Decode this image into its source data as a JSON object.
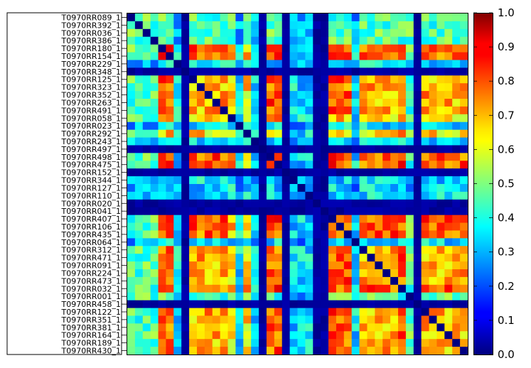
{
  "chart_data": {
    "type": "heatmap",
    "title": "",
    "xlabel": "",
    "ylabel": "",
    "row_labels": [
      "T0970RR089_1",
      "T0970RR392_1",
      "T0970RR036_1",
      "T0970RR386_1",
      "T0970RR180_1",
      "T0970RR154_1",
      "T0970RR229_1",
      "T0970RR348_1",
      "T0970RR125_1",
      "T0970RR323_1",
      "T0970RR352_1",
      "T0970RR263_1",
      "T0970RR491_1",
      "T0970RR058_1",
      "T0970RR023_1",
      "T0970RR292_1",
      "T0970RR243_1",
      "T0970RR497_1",
      "T0970RR498_1",
      "T0970RR475_1",
      "T0970RR152_1",
      "T0970RR344_1",
      "T0970RR127_1",
      "T0970RR110_1",
      "T0970RR020_1",
      "T0970RR041_1",
      "T0970RR407_1",
      "T0970RR106_1",
      "T0970RR435_1",
      "T0970RR064_1",
      "T0970RR312_1",
      "T0970RR471_1",
      "T0970RR091_1",
      "T0970RR224_1",
      "T0970RR473_1",
      "T0970RR032_1",
      "T0970RR001_1",
      "T0970RR458_1",
      "T0970RR122_1",
      "T0970RR351_1",
      "T0970RR381_1",
      "T0970RR164_1",
      "T0970RR189_1",
      "T0970RR430_1"
    ],
    "row_group": [
      4,
      4,
      4,
      4,
      1,
      1,
      3,
      5,
      0,
      0,
      0,
      0,
      0,
      2,
      3,
      2,
      3,
      5,
      1,
      1,
      5,
      3,
      3,
      3,
      5,
      5,
      1,
      1,
      1,
      3,
      0,
      0,
      0,
      0,
      0,
      1,
      4,
      5,
      0,
      0,
      0,
      0,
      0,
      0
    ],
    "group_similarity": [
      [
        0.7,
        0.78,
        0.65,
        0.35,
        0.45,
        0.03
      ],
      [
        0.78,
        0.8,
        0.7,
        0.35,
        0.45,
        0.03
      ],
      [
        0.65,
        0.7,
        0.65,
        0.35,
        0.45,
        0.03
      ],
      [
        0.35,
        0.35,
        0.35,
        0.28,
        0.3,
        0.03
      ],
      [
        0.45,
        0.45,
        0.45,
        0.3,
        0.45,
        0.03
      ],
      [
        0.03,
        0.03,
        0.03,
        0.03,
        0.03,
        0.03
      ]
    ],
    "diagonal_value": 0.0,
    "colormap": "jet",
    "colorbar": {
      "min": 0.0,
      "max": 1.0,
      "ticks": [
        "0.0",
        "0.1",
        "0.2",
        "0.3",
        "0.4",
        "0.5",
        "0.6",
        "0.7",
        "0.8",
        "0.9",
        "1.0"
      ]
    },
    "grid": false
  }
}
